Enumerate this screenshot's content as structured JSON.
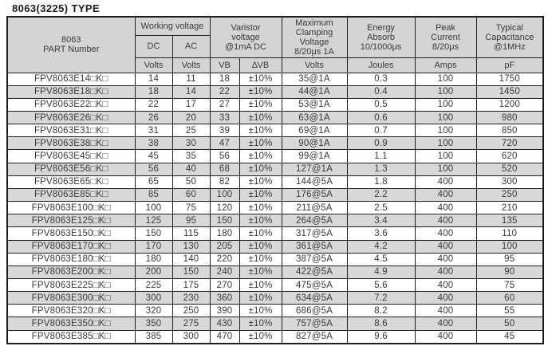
{
  "page": {
    "title": "8063(3225) TYPE"
  },
  "colors": {
    "header_bg": "#d4d4d4",
    "alt_row_bg": "#d8d8d8",
    "border": "#1f1f1f",
    "text": "#3a3a3a"
  },
  "table": {
    "header": {
      "part_number": "8063\nPART Number",
      "working_voltage": "Working voltage",
      "dc": "DC",
      "ac": "AC",
      "varistor_voltage": "Varistor\nvoltage\n@1mA DC",
      "max_clamping_voltage": "Maximum\nClamping\nVoltage\n8/20μs 1A",
      "energy_absorb": "Energy\nAbsorb\n10/1000μs",
      "peak_current": "Peak\nCurrent\n8/20μs",
      "typical_capacitance": "Typical\nCapacitance\n@1MHz",
      "units": [
        "Volts",
        "Volts",
        "VB",
        "∆VB",
        "Volts",
        "Joules",
        "Amps",
        "pF"
      ]
    },
    "rows": [
      [
        "FPV8063E14□K□",
        "14",
        "11",
        "18",
        "±10%",
        "35@1A",
        "0.3",
        "100",
        "1750"
      ],
      [
        "FPV8063E18□K□",
        "18",
        "14",
        "22",
        "±10%",
        "44@1A",
        "0.4",
        "100",
        "1450"
      ],
      [
        "FPV8063E22□K□",
        "22",
        "17",
        "27",
        "±10%",
        "53@1A",
        "0.5",
        "100",
        "1200"
      ],
      [
        "FPV8063E26□K□",
        "26",
        "20",
        "33",
        "±10%",
        "63@1A",
        "0.6",
        "100",
        "980"
      ],
      [
        "FPV8063E31□K□",
        "31",
        "25",
        "39",
        "±10%",
        "69@1A",
        "0.7",
        "100",
        "850"
      ],
      [
        "FPV8063E38□K□",
        "38",
        "30",
        "47",
        "±10%",
        "90@1A",
        "0.9",
        "100",
        "720"
      ],
      [
        "FPV8063E45□K□",
        "45",
        "35",
        "56",
        "±10%",
        "99@1A",
        "1.1",
        "100",
        "620"
      ],
      [
        "FPV8063E56□K□",
        "56",
        "40",
        "68",
        "±10%",
        "127@1A",
        "1.3",
        "100",
        "520"
      ],
      [
        "FPV8063E65□K□",
        "65",
        "50",
        "82",
        "±10%",
        "144@5A",
        "1.8",
        "400",
        "300"
      ],
      [
        "FPV8063E85□K□",
        "85",
        "60",
        "100",
        "±10%",
        "176@5A",
        "2.2",
        "400",
        "250"
      ],
      [
        "FPV8063E100□K□",
        "100",
        "75",
        "120",
        "±10%",
        "211@5A",
        "2.5",
        "400",
        "210"
      ],
      [
        "FPV8063E125□K□",
        "125",
        "95",
        "150",
        "±10%",
        "264@5A",
        "3.4",
        "400",
        "135"
      ],
      [
        "FPV8063E150□K□",
        "150",
        "115",
        "180",
        "±10%",
        "317@5A",
        "3.6",
        "400",
        "110"
      ],
      [
        "FPV8063E170□K□",
        "170",
        "130",
        "205",
        "±10%",
        "361@5A",
        "4.2",
        "400",
        "100"
      ],
      [
        "FPV8063E180□K□",
        "180",
        "140",
        "220",
        "±10%",
        "387@5A",
        "4.5",
        "400",
        "95"
      ],
      [
        "FPV8063E200□K□",
        "200",
        "150",
        "240",
        "±10%",
        "422@5A",
        "4.9",
        "400",
        "90"
      ],
      [
        "FPV8063E225□K□",
        "225",
        "175",
        "270",
        "±10%",
        "475@5A",
        "5.6",
        "400",
        "75"
      ],
      [
        "FPV8063E300□K□",
        "300",
        "230",
        "360",
        "±10%",
        "634@5A",
        "7.2",
        "400",
        "60"
      ],
      [
        "FPV8063E320□K□",
        "320",
        "250",
        "390",
        "±10%",
        "686@5A",
        "8.2",
        "400",
        "55"
      ],
      [
        "FPV8063E350□K□",
        "350",
        "275",
        "430",
        "±10%",
        "757@5A",
        "8.6",
        "400",
        "50"
      ],
      [
        "FPV8063E385□K□",
        "385",
        "300",
        "470",
        "±10%",
        "827@5A",
        "9.6",
        "400",
        "45"
      ]
    ]
  }
}
